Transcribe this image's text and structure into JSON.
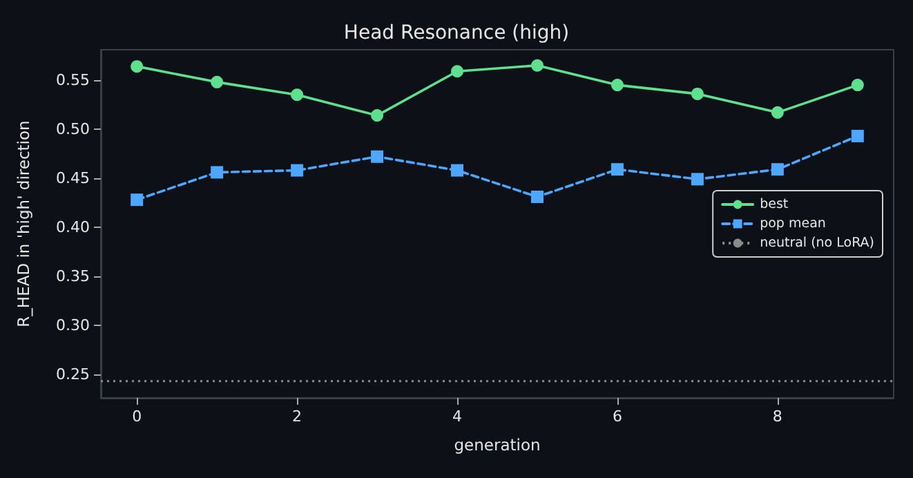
{
  "chart_data": {
    "type": "line",
    "title": "Head Resonance (high)",
    "xlabel": "generation",
    "ylabel": "R_HEAD in 'high' direction",
    "x": [
      0,
      1,
      2,
      3,
      4,
      5,
      6,
      7,
      8,
      9
    ],
    "series": [
      {
        "name": "best",
        "color": "#5ee08f",
        "marker": "circle",
        "line_style": "solid",
        "values": [
          0.564,
          0.548,
          0.535,
          0.514,
          0.559,
          0.565,
          0.545,
          0.536,
          0.517,
          0.545
        ]
      },
      {
        "name": "pop mean",
        "color": "#4da6ff",
        "marker": "square",
        "line_style": "dashed",
        "values": [
          0.428,
          0.456,
          0.458,
          0.472,
          0.458,
          0.431,
          0.459,
          0.449,
          0.459,
          0.493
        ]
      }
    ],
    "ref_lines": [
      {
        "axis": "y",
        "value": 0.243,
        "label": "neutral (no LoRA)",
        "color": "#8b8b8b",
        "line_style": "dotted"
      }
    ],
    "xlim": [
      -0.45,
      9.45
    ],
    "xticks": [
      0,
      2,
      4,
      6,
      8
    ],
    "ylim": [
      0.226,
      0.581
    ],
    "yticks": [
      {
        "value": 0.25,
        "label": "0.25"
      },
      {
        "value": 0.3,
        "label": "0.30"
      },
      {
        "value": 0.35,
        "label": "0.35"
      },
      {
        "value": 0.4,
        "label": "0.40"
      },
      {
        "value": 0.45,
        "label": "0.45"
      },
      {
        "value": 0.5,
        "label": "0.50"
      },
      {
        "value": 0.55,
        "label": "0.55"
      }
    ],
    "grid": false,
    "legend": "right"
  }
}
